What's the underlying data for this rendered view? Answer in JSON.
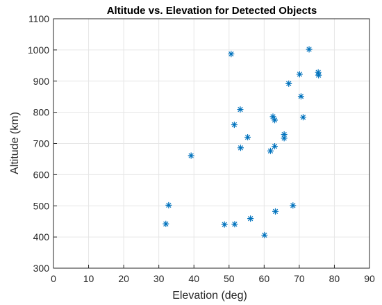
{
  "chart_data": {
    "type": "scatter",
    "title": "Altitude vs. Elevation for Detected Objects",
    "xlabel": "Elevation (deg)",
    "ylabel": "Altitude (km)",
    "xlim": [
      0,
      90
    ],
    "ylim": [
      300,
      1100
    ],
    "xticks": [
      0,
      10,
      20,
      30,
      40,
      50,
      60,
      70,
      80,
      90
    ],
    "yticks": [
      300,
      400,
      500,
      600,
      700,
      800,
      900,
      1000,
      1100
    ],
    "grid": true,
    "marker": "asterisk",
    "marker_color": "#0072bd",
    "points": [
      {
        "x": 32.0,
        "y": 442
      },
      {
        "x": 32.8,
        "y": 502
      },
      {
        "x": 39.2,
        "y": 661
      },
      {
        "x": 48.7,
        "y": 440
      },
      {
        "x": 50.6,
        "y": 987
      },
      {
        "x": 51.5,
        "y": 760
      },
      {
        "x": 51.6,
        "y": 441
      },
      {
        "x": 53.2,
        "y": 809
      },
      {
        "x": 53.3,
        "y": 686
      },
      {
        "x": 55.3,
        "y": 720
      },
      {
        "x": 56.1,
        "y": 459
      },
      {
        "x": 60.1,
        "y": 406
      },
      {
        "x": 61.8,
        "y": 676
      },
      {
        "x": 62.5,
        "y": 786
      },
      {
        "x": 63.0,
        "y": 691
      },
      {
        "x": 63.0,
        "y": 775
      },
      {
        "x": 63.2,
        "y": 482
      },
      {
        "x": 65.7,
        "y": 729
      },
      {
        "x": 65.7,
        "y": 717
      },
      {
        "x": 67.0,
        "y": 892
      },
      {
        "x": 68.2,
        "y": 501
      },
      {
        "x": 70.1,
        "y": 922
      },
      {
        "x": 70.5,
        "y": 851
      },
      {
        "x": 71.1,
        "y": 784
      },
      {
        "x": 72.8,
        "y": 1002
      },
      {
        "x": 75.4,
        "y": 928
      },
      {
        "x": 75.5,
        "y": 919
      }
    ]
  }
}
